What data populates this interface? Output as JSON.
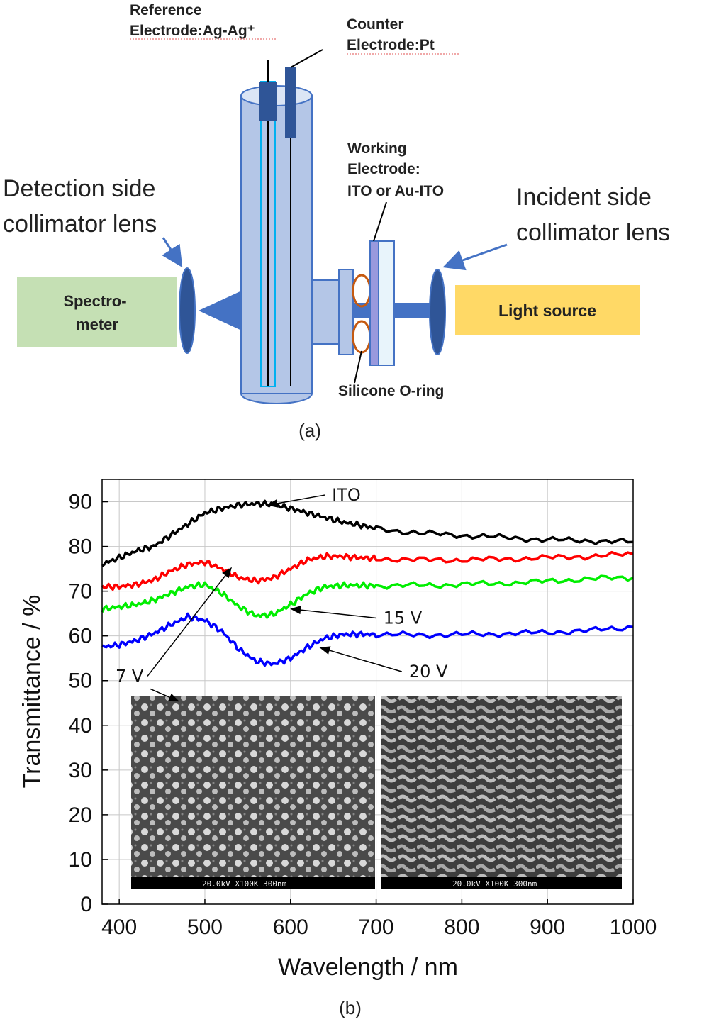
{
  "diagram": {
    "reference_electrode": [
      "Reference",
      "Electrode:Ag-Ag⁺"
    ],
    "counter_electrode": [
      "Counter",
      "Electrode:Pt"
    ],
    "working_electrode": [
      "Working",
      "Electrode:",
      "ITO or Au-ITO"
    ],
    "detection_lens": [
      "Detection side",
      "collimator lens"
    ],
    "incident_lens": [
      "Incident side",
      "collimator lens"
    ],
    "spectrometer": [
      "Spectro-",
      "meter"
    ],
    "light_source": "Light source",
    "o_ring": "Silicone O-ring",
    "caption": "(a)",
    "colors": {
      "cell": "#b4c6e7",
      "dark_blue": "#2f5597",
      "beam": "#4472c4",
      "spectrometer": "#c5e0b4",
      "light_source": "#ffd966",
      "oring": "#c55a11"
    }
  },
  "chart_caption": "(b)",
  "chart_data": {
    "type": "line",
    "title": "",
    "xlabel": "Wavelength / nm",
    "ylabel": "Transmittance / %",
    "xlim": [
      380,
      1000
    ],
    "ylim": [
      0,
      95
    ],
    "xticks": [
      400,
      500,
      600,
      700,
      800,
      900,
      1000
    ],
    "yticks": [
      0,
      10,
      20,
      30,
      40,
      50,
      60,
      70,
      80,
      90
    ],
    "grid": true,
    "series": [
      {
        "name": "ITO",
        "color": "#000000",
        "x": [
          380,
          400,
          420,
          440,
          460,
          480,
          500,
          520,
          540,
          560,
          580,
          600,
          620,
          640,
          660,
          680,
          700,
          750,
          800,
          850,
          900,
          950,
          1000
        ],
        "y": [
          76,
          77.5,
          79,
          80,
          82.5,
          85,
          87.5,
          88.5,
          89.3,
          89.6,
          89.4,
          88.5,
          87.5,
          86.5,
          85.5,
          84.8,
          84,
          83,
          82.5,
          82,
          81.5,
          81.3,
          81
        ]
      },
      {
        "name": "7 V",
        "color": "#ff0000",
        "x": [
          380,
          400,
          420,
          440,
          460,
          480,
          500,
          520,
          540,
          560,
          580,
          600,
          620,
          640,
          660,
          680,
          700,
          750,
          800,
          850,
          900,
          950,
          1000
        ],
        "y": [
          71,
          71,
          71.5,
          72.5,
          74.5,
          76,
          76.5,
          75,
          73,
          72.3,
          73,
          75,
          77,
          77.8,
          77.8,
          77.5,
          77.3,
          77,
          77,
          77.2,
          77.5,
          77.8,
          78.3
        ]
      },
      {
        "name": "15 V",
        "color": "#00ee00",
        "x": [
          380,
          400,
          420,
          440,
          460,
          480,
          500,
          520,
          540,
          560,
          580,
          600,
          620,
          640,
          660,
          680,
          700,
          750,
          800,
          850,
          900,
          950,
          1000
        ],
        "y": [
          66,
          66.5,
          67,
          68,
          69.5,
          71,
          71.5,
          69.5,
          66.5,
          64.5,
          64.8,
          67,
          69.5,
          71,
          71.3,
          71.3,
          71.2,
          71.3,
          71.5,
          71.8,
          72.2,
          72.8,
          73
        ]
      },
      {
        "name": "20 V",
        "color": "#0000ff",
        "x": [
          380,
          400,
          420,
          440,
          460,
          480,
          500,
          520,
          540,
          560,
          580,
          600,
          620,
          640,
          660,
          680,
          700,
          750,
          800,
          850,
          900,
          950,
          1000
        ],
        "y": [
          57.5,
          58,
          59,
          60.5,
          62.5,
          64.3,
          63.5,
          61,
          57,
          54.3,
          53.7,
          55,
          57.5,
          59.5,
          60.3,
          60.4,
          60.3,
          60.2,
          60.3,
          60.5,
          60.8,
          61.2,
          62
        ]
      }
    ],
    "annotations": [
      {
        "text": "ITO",
        "x": 575,
        "y": 89.3,
        "lx": 640,
        "ly": 91.5
      },
      {
        "text": "7 V",
        "x": 530,
        "y": 75,
        "lx": 433,
        "ly": 51,
        "extra": [
          {
            "x": 440,
            "y": 48
          },
          {
            "x": 438,
            "y": 48
          }
        ]
      },
      {
        "text": "15 V",
        "x": 602,
        "y": 66,
        "lx": 700,
        "ly": 64
      },
      {
        "text": "20 V",
        "x": 636,
        "y": 57.3,
        "lx": 730,
        "ly": 52
      }
    ],
    "inset_labels": [
      "20.0kV   X100K   300nm",
      "20.0kV   X100K   300nm"
    ]
  }
}
